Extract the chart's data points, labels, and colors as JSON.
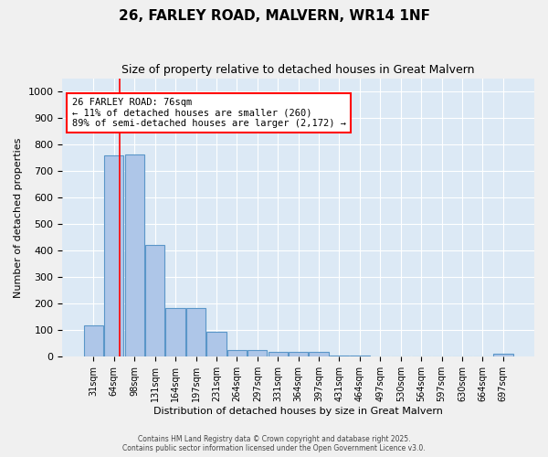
{
  "title": "26, FARLEY ROAD, MALVERN, WR14 1NF",
  "subtitle": "Size of property relative to detached houses in Great Malvern",
  "xlabel": "Distribution of detached houses by size in Great Malvern",
  "ylabel": "Number of detached properties",
  "categories": [
    "31sqm",
    "64sqm",
    "98sqm",
    "131sqm",
    "164sqm",
    "197sqm",
    "231sqm",
    "264sqm",
    "297sqm",
    "331sqm",
    "364sqm",
    "397sqm",
    "431sqm",
    "464sqm",
    "497sqm",
    "530sqm",
    "564sqm",
    "597sqm",
    "630sqm",
    "664sqm",
    "697sqm"
  ],
  "values": [
    120,
    760,
    762,
    420,
    185,
    185,
    95,
    25,
    25,
    20,
    20,
    20,
    5,
    5,
    0,
    0,
    0,
    0,
    0,
    0,
    10
  ],
  "bar_color": "#aec6e8",
  "bar_edge_color": "#5a96c8",
  "background_color": "#dce9f5",
  "fig_background_color": "#f0f0f0",
  "ylim": [
    0,
    1050
  ],
  "yticks": [
    0,
    100,
    200,
    300,
    400,
    500,
    600,
    700,
    800,
    900,
    1000
  ],
  "red_line_x": 1.27,
  "annotation_text": "26 FARLEY ROAD: 76sqm\n← 11% of detached houses are smaller (260)\n89% of semi-detached houses are larger (2,172) →",
  "footer1": "Contains HM Land Registry data © Crown copyright and database right 2025.",
  "footer2": "Contains public sector information licensed under the Open Government Licence v3.0."
}
